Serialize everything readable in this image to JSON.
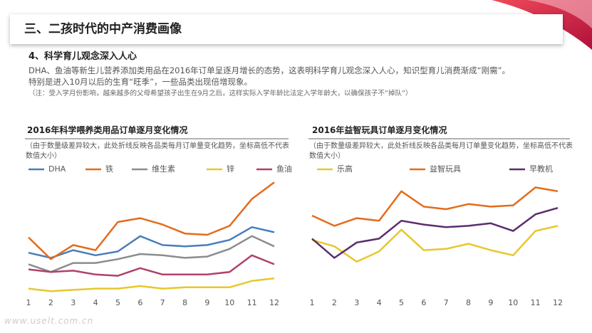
{
  "header": {
    "title": "三、二孩时代的中产消费画像"
  },
  "section": {
    "title": "4、科学育儿观念深入人心",
    "paragraphs": [
      "DHA、鱼油等新生儿营养添加类用品在2016年订单呈逐月增长的态势，这表明科学育儿观念深入人心，知识型育儿消费渐成“刚需”。",
      "特别是进入10月以后的生育“旺季”，一些品类出现倍增现象。"
    ],
    "note": "（注：受入学月份影响，越来越多的父母希望孩子出生在9月之后，这样实际入学年龄比法定入学年龄大，以确保孩子不“掉队”）"
  },
  "watermark": "www.uselt.com.cn",
  "chart_data": [
    {
      "type": "line",
      "title": "2016年科学喂养类用品订单逐月变化情况",
      "subtitle": "（由于数量级差异较大，此处折线反映各品类每月订单量变化趋势，坐标高低不代表数值大小）",
      "x": [
        1,
        2,
        3,
        4,
        5,
        6,
        7,
        8,
        9,
        10,
        11,
        12
      ],
      "xlim": [
        1,
        12
      ],
      "xticks": [
        1,
        2,
        3,
        4,
        5,
        6,
        7,
        8,
        9,
        10,
        11,
        12
      ],
      "ylim": [
        0,
        100
      ],
      "series": [
        {
          "name": "DHA",
          "color": "#4a7ebb",
          "values": [
            36,
            32,
            38,
            34,
            37,
            49,
            42,
            41,
            42,
            46,
            56,
            52
          ]
        },
        {
          "name": "铁",
          "color": "#e36c1c",
          "values": [
            48,
            31,
            42,
            38,
            60,
            63,
            58,
            51,
            50,
            57,
            78,
            91
          ]
        },
        {
          "name": "维生素",
          "color": "#8c8c8c",
          "values": [
            27,
            21,
            28,
            28,
            31,
            35,
            34,
            32,
            33,
            39,
            49,
            41
          ]
        },
        {
          "name": "锌",
          "color": "#e8c72c",
          "values": [
            8,
            6,
            7,
            8,
            8,
            10,
            8,
            9,
            9,
            9,
            14,
            16
          ]
        },
        {
          "name": "鱼油",
          "color": "#b0406e",
          "values": [
            23,
            21,
            22,
            19,
            18,
            24,
            19,
            19,
            19,
            21,
            34,
            27
          ]
        }
      ]
    },
    {
      "type": "line",
      "title": "2016年益智玩具订单逐月变化情况",
      "subtitle": "（由于数量级差异较大，此处折线反映各品类每月订单量变化趋势，坐标高低不代表数值大小）",
      "x": [
        1,
        2,
        3,
        4,
        5,
        6,
        7,
        8,
        9,
        10,
        11,
        12
      ],
      "xlim": [
        1,
        12
      ],
      "xticks": [
        1,
        2,
        3,
        4,
        5,
        6,
        7,
        8,
        9,
        10,
        11,
        12
      ],
      "ylim": [
        0,
        100
      ],
      "series": [
        {
          "name": "乐高",
          "color": "#e8c72c",
          "values": [
            46,
            41,
            29,
            37,
            54,
            38,
            39,
            43,
            38,
            34,
            53,
            57
          ]
        },
        {
          "name": "益智玩具",
          "color": "#e36c1c",
          "values": [
            65,
            57,
            63,
            61,
            84,
            72,
            70,
            74,
            72,
            73,
            87,
            84
          ]
        },
        {
          "name": "早教机",
          "color": "#5a2d6e",
          "values": [
            47,
            32,
            44,
            47,
            61,
            58,
            56,
            57,
            59,
            53,
            66,
            71
          ]
        }
      ]
    }
  ]
}
